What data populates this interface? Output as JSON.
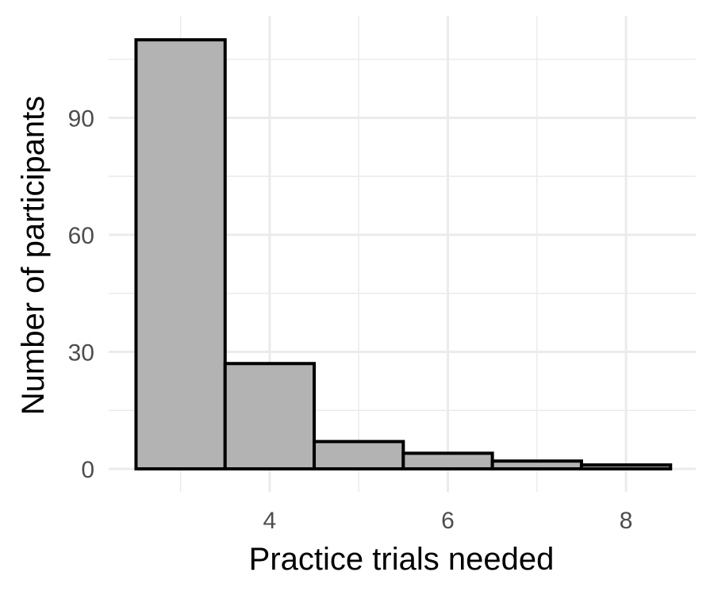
{
  "chart_data": {
    "type": "bar",
    "subtype": "histogram",
    "xlabel": "Practice trials needed",
    "ylabel": "Number of participants",
    "bins": [
      {
        "x": 3,
        "value": 110
      },
      {
        "x": 4,
        "value": 27
      },
      {
        "x": 5,
        "value": 7
      },
      {
        "x": 6,
        "value": 4
      },
      {
        "x": 7,
        "value": 2
      },
      {
        "x": 8,
        "value": 1
      }
    ],
    "bin_width": 1,
    "xlim": [
      2.5,
      8.5
    ],
    "ylim": [
      0,
      110
    ],
    "x_ticks": [
      4,
      6,
      8
    ],
    "y_ticks": [
      0,
      30,
      60,
      90
    ],
    "grid": true,
    "colors": {
      "bar_fill": "#b3b3b3",
      "bar_stroke": "#000000",
      "grid": "#ebebeb"
    }
  }
}
